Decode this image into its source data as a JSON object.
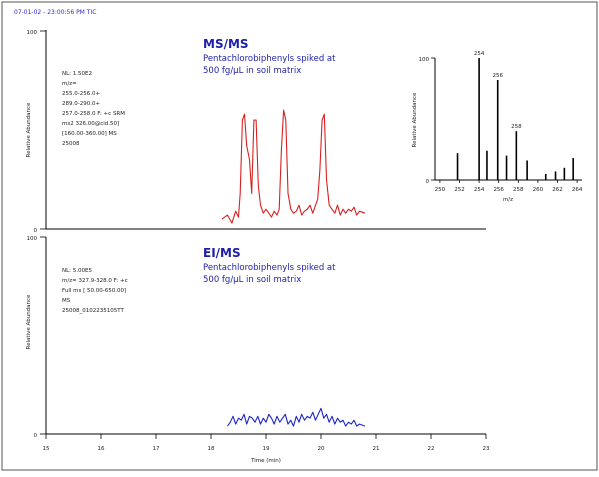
{
  "header": {
    "text": "07-01-02 - 23:00:56 PM TIC"
  },
  "chart_data": [
    {
      "type": "line",
      "panel": "top",
      "title": "MS/MS",
      "subtitle_lines": [
        "Pentachlorobiphenyls spiked at",
        "500 fg/µL in soil matrix"
      ],
      "info_lines": [
        "NL: 1.50E2",
        "m/z=",
        "255.0-256.0+",
        "289.0-290.0+",
        "257.0-258.0 F: +c SRM",
        "ms2 326.00@cid.50]",
        "[160.00-360.00] MS",
        "25008"
      ],
      "ylabel": "Relative Abundance",
      "y_tick_labels": [
        "0",
        "100"
      ],
      "ylim": [
        0,
        100
      ],
      "xlim": [
        15,
        23
      ],
      "line_color": "#d92020",
      "series": [
        {
          "x": [
            18.2,
            18.3,
            18.38,
            18.45,
            18.5,
            18.53,
            18.57,
            18.61,
            18.65,
            18.7,
            18.74,
            18.78,
            18.82,
            18.86,
            18.9,
            18.95,
            19.0,
            19.05,
            19.1,
            19.15,
            19.2,
            19.24,
            19.28,
            19.32,
            19.36,
            19.4,
            19.45,
            19.5,
            19.55,
            19.6,
            19.65,
            19.7,
            19.75,
            19.8,
            19.85,
            19.9,
            19.94,
            19.98,
            20.02,
            20.06,
            20.1,
            20.15,
            20.2,
            20.25,
            20.3,
            20.35,
            20.4,
            20.45,
            20.5,
            20.55,
            20.6,
            20.65,
            20.7,
            20.8
          ],
          "y": [
            5,
            7,
            3,
            9,
            6,
            18,
            55,
            58,
            42,
            35,
            18,
            55,
            55,
            22,
            12,
            8,
            10,
            8,
            6,
            9,
            7,
            10,
            40,
            60,
            55,
            18,
            10,
            8,
            9,
            12,
            7,
            9,
            10,
            12,
            8,
            12,
            15,
            30,
            55,
            58,
            25,
            12,
            10,
            8,
            12,
            7,
            10,
            8,
            10,
            9,
            11,
            7,
            9,
            8
          ]
        }
      ],
      "inset": {
        "type": "bar",
        "ylabel": "Relative Abundance",
        "xlabel": "m/z",
        "y_tick_labels": [
          "0",
          "100"
        ],
        "ylim": [
          0,
          100
        ],
        "xlim": [
          249.5,
          264.5
        ],
        "x_tick_labels": [
          "250",
          "252",
          "254",
          "256",
          "258",
          "260",
          "262",
          "264"
        ],
        "categories": [
          251.8,
          254.0,
          254.8,
          255.9,
          256.8,
          257.8,
          258.9,
          260.8,
          261.8,
          262.7,
          263.6
        ],
        "values": [
          22,
          100,
          24,
          82,
          20,
          40,
          16,
          5,
          7,
          10,
          18
        ],
        "peak_labels": [
          {
            "x": 254.0,
            "text": "254"
          },
          {
            "x": 255.9,
            "text": "256"
          },
          {
            "x": 257.8,
            "text": "258"
          }
        ]
      }
    },
    {
      "type": "line",
      "panel": "bottom",
      "title": "EI/MS",
      "subtitle_lines": [
        "Pentachlorobiphenyls spiked at",
        "500 fg/µL in soil matrix"
      ],
      "info_lines": [
        "NL: 5.00E5",
        "m/z= 327.9-328.0 F: +c",
        "Full ms [ 50.00-650.00]",
        "MS",
        "25008_0102235105TT"
      ],
      "ylabel": "Relative Abundance",
      "y_tick_labels": [
        "0",
        "100"
      ],
      "ylim": [
        0,
        100
      ],
      "xlim": [
        15,
        23
      ],
      "xlabel": "Time (min)",
      "x_tick_labels": [
        "15",
        "16",
        "17",
        "18",
        "19",
        "20",
        "21",
        "22",
        "23"
      ],
      "line_color": "#1c24c8",
      "series": [
        {
          "x": [
            18.3,
            18.35,
            18.4,
            18.45,
            18.5,
            18.55,
            18.6,
            18.65,
            18.7,
            18.75,
            18.8,
            18.85,
            18.9,
            18.95,
            19.0,
            19.05,
            19.1,
            19.15,
            19.2,
            19.25,
            19.3,
            19.35,
            19.4,
            19.45,
            19.5,
            19.55,
            19.6,
            19.65,
            19.7,
            19.75,
            19.8,
            19.85,
            19.9,
            19.95,
            20.0,
            20.05,
            20.1,
            20.15,
            20.2,
            20.25,
            20.3,
            20.35,
            20.4,
            20.45,
            20.5,
            20.55,
            20.6,
            20.65,
            20.7,
            20.8
          ],
          "y": [
            4,
            6,
            9,
            5,
            8,
            7,
            10,
            5,
            9,
            8,
            6,
            9,
            5,
            8,
            6,
            10,
            8,
            5,
            9,
            6,
            8,
            10,
            5,
            7,
            4,
            9,
            6,
            10,
            7,
            9,
            8,
            11,
            7,
            10,
            13,
            8,
            10,
            6,
            9,
            5,
            8,
            6,
            7,
            4,
            6,
            5,
            7,
            4,
            5,
            4
          ]
        }
      ]
    }
  ]
}
